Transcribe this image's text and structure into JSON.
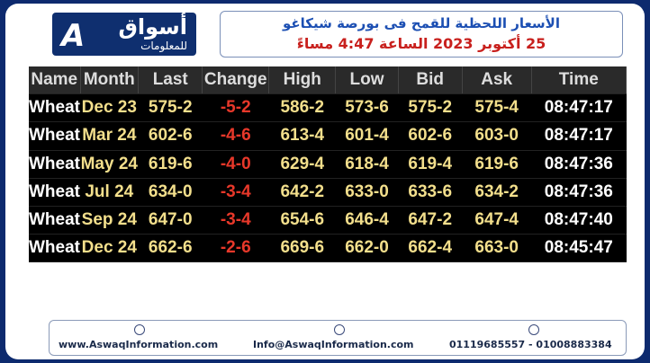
{
  "logo": {
    "name": "أسواق",
    "subtitle": "للمعلومات"
  },
  "header": {
    "title": "الأسعار اللحظية للقمح فى بورصة شيكاغو",
    "date": "25 أكتوبر 2023 الساعة 4:47 مساءً"
  },
  "table": {
    "columns": [
      "Name",
      "Month",
      "Last",
      "Change",
      "High",
      "Low",
      "Bid",
      "Ask",
      "Time"
    ],
    "rows": [
      [
        "Wheat",
        "Dec 23",
        "575-2",
        "-5-2",
        "586-2",
        "573-6",
        "575-2",
        "575-4",
        "08:47:17"
      ],
      [
        "Wheat",
        "Mar 24",
        "602-6",
        "-4-6",
        "613-4",
        "601-4",
        "602-6",
        "603-0",
        "08:47:17"
      ],
      [
        "Wheat",
        "May 24",
        "619-6",
        "-4-0",
        "629-4",
        "618-4",
        "619-4",
        "619-6",
        "08:47:36"
      ],
      [
        "Wheat",
        "Jul 24",
        "634-0",
        "-3-4",
        "642-2",
        "633-0",
        "633-6",
        "634-2",
        "08:47:36"
      ],
      [
        "Wheat",
        "Sep 24",
        "647-0",
        "-3-4",
        "654-6",
        "646-4",
        "647-2",
        "647-4",
        "08:47:40"
      ],
      [
        "Wheat",
        "Dec 24",
        "662-6",
        "-2-6",
        "669-6",
        "662-0",
        "662-4",
        "663-0",
        "08:45:47"
      ]
    ]
  },
  "footer": {
    "website": "www.AswaqInformation.com",
    "email": "Info@AswaqInformation.com",
    "phone": "01119685557 - 01008883384"
  }
}
